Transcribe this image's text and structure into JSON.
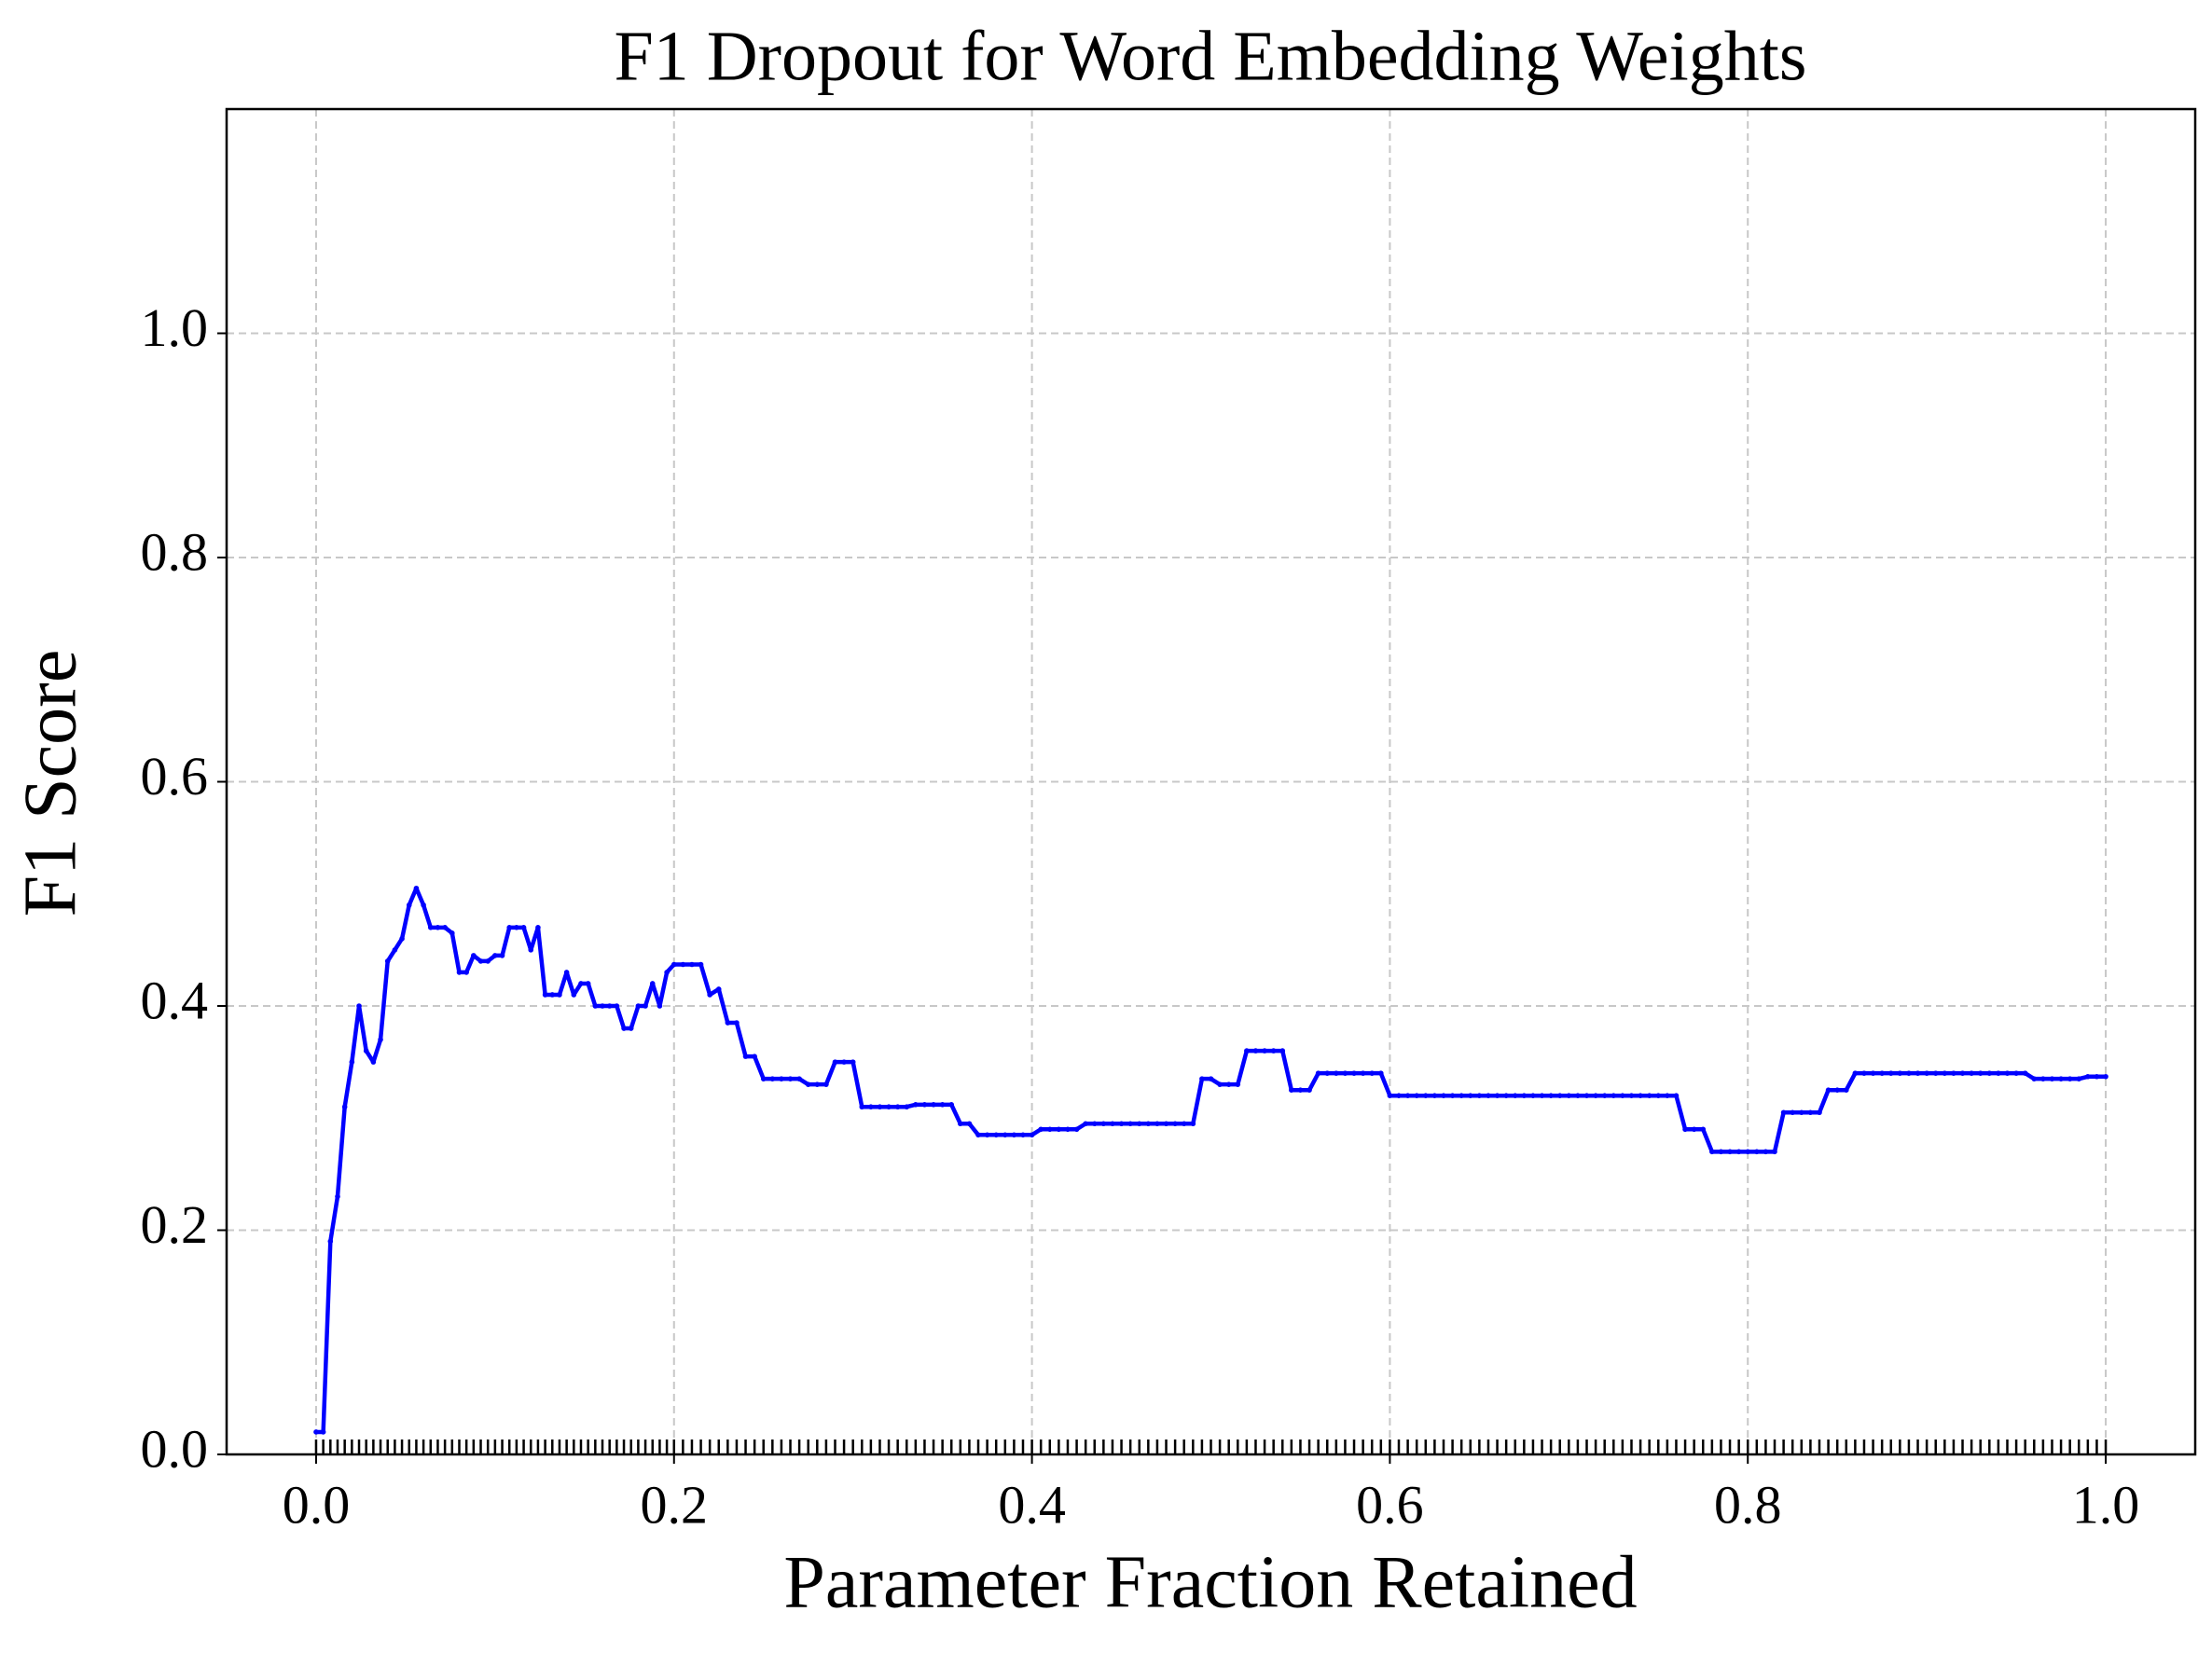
{
  "chart_data": {
    "type": "line",
    "title": "F1 Dropout for Word Embedding Weights",
    "xlabel": "Parameter Fraction Retained",
    "ylabel": "F1 Score",
    "xlim": [
      -0.05,
      1.05
    ],
    "ylim": [
      0,
      1.2
    ],
    "xticks": [
      {
        "value": 0,
        "label": "0.0"
      },
      0.2,
      0.4,
      0.6,
      0.8,
      {
        "value": 1,
        "label": "1.0"
      }
    ],
    "yticks": [
      {
        "value": 0,
        "label": "0.0"
      },
      0.2,
      0.4,
      0.6,
      0.8,
      {
        "value": 1,
        "label": "1.0"
      }
    ],
    "grid": true,
    "rug": true,
    "color": "#0000ff",
    "x": [
      0,
      0.004,
      0.008,
      0.012,
      0.016,
      0.02,
      0.024,
      0.028,
      0.032,
      0.036,
      0.04,
      0.044,
      0.048,
      0.052,
      0.056,
      0.06,
      0.064,
      0.068,
      0.072,
      0.076,
      0.08,
      0.084,
      0.088,
      0.092,
      0.096,
      0.1,
      0.104,
      0.108,
      0.112,
      0.116,
      0.12,
      0.124,
      0.128,
      0.132,
      0.136,
      0.14,
      0.144,
      0.148,
      0.152,
      0.156,
      0.16,
      0.164,
      0.168,
      0.172,
      0.176,
      0.18,
      0.184,
      0.188,
      0.192,
      0.196,
      0.2,
      0.205,
      0.21,
      0.215,
      0.22,
      0.225,
      0.23,
      0.235,
      0.24,
      0.245,
      0.25,
      0.255,
      0.26,
      0.265,
      0.27,
      0.275,
      0.28,
      0.285,
      0.29,
      0.295,
      0.3,
      0.305,
      0.31,
      0.315,
      0.32,
      0.325,
      0.33,
      0.335,
      0.34,
      0.345,
      0.35,
      0.355,
      0.36,
      0.365,
      0.37,
      0.375,
      0.38,
      0.385,
      0.39,
      0.395,
      0.4,
      0.405,
      0.41,
      0.415,
      0.42,
      0.425,
      0.43,
      0.435,
      0.44,
      0.445,
      0.45,
      0.455,
      0.46,
      0.465,
      0.47,
      0.475,
      0.48,
      0.485,
      0.49,
      0.495,
      0.5,
      0.505,
      0.51,
      0.515,
      0.52,
      0.525,
      0.53,
      0.535,
      0.54,
      0.545,
      0.55,
      0.555,
      0.56,
      0.565,
      0.57,
      0.575,
      0.58,
      0.585,
      0.59,
      0.595,
      0.6,
      0.605,
      0.61,
      0.615,
      0.62,
      0.625,
      0.63,
      0.635,
      0.64,
      0.645,
      0.65,
      0.655,
      0.66,
      0.665,
      0.67,
      0.675,
      0.68,
      0.685,
      0.69,
      0.695,
      0.7,
      0.705,
      0.71,
      0.715,
      0.72,
      0.725,
      0.73,
      0.735,
      0.74,
      0.745,
      0.75,
      0.755,
      0.76,
      0.765,
      0.77,
      0.775,
      0.78,
      0.785,
      0.79,
      0.795,
      0.8,
      0.805,
      0.81,
      0.815,
      0.82,
      0.825,
      0.83,
      0.835,
      0.84,
      0.845,
      0.85,
      0.855,
      0.86,
      0.865,
      0.87,
      0.875,
      0.88,
      0.885,
      0.89,
      0.895,
      0.9,
      0.905,
      0.91,
      0.915,
      0.92,
      0.925,
      0.93,
      0.935,
      0.94,
      0.945,
      0.95,
      0.955,
      0.96,
      0.965,
      0.97,
      0.975,
      0.98,
      0.985,
      0.99,
      0.995,
      1
    ],
    "values": [
      0.02,
      0.02,
      0.19,
      0.23,
      0.31,
      0.35,
      0.4,
      0.36,
      0.35,
      0.37,
      0.44,
      0.45,
      0.46,
      0.49,
      0.505,
      0.49,
      0.47,
      0.47,
      0.47,
      0.465,
      0.43,
      0.43,
      0.445,
      0.44,
      0.44,
      0.445,
      0.445,
      0.47,
      0.47,
      0.47,
      0.45,
      0.47,
      0.41,
      0.41,
      0.41,
      0.43,
      0.41,
      0.42,
      0.42,
      0.4,
      0.4,
      0.4,
      0.4,
      0.38,
      0.38,
      0.4,
      0.4,
      0.42,
      0.4,
      0.43,
      0.437,
      0.437,
      0.437,
      0.437,
      0.41,
      0.415,
      0.385,
      0.385,
      0.355,
      0.355,
      0.335,
      0.335,
      0.335,
      0.335,
      0.335,
      0.33,
      0.33,
      0.33,
      0.35,
      0.35,
      0.35,
      0.31,
      0.31,
      0.31,
      0.31,
      0.31,
      0.31,
      0.312,
      0.312,
      0.312,
      0.312,
      0.312,
      0.295,
      0.295,
      0.285,
      0.285,
      0.285,
      0.285,
      0.285,
      0.285,
      0.285,
      0.29,
      0.29,
      0.29,
      0.29,
      0.29,
      0.295,
      0.295,
      0.295,
      0.295,
      0.295,
      0.295,
      0.295,
      0.295,
      0.295,
      0.295,
      0.295,
      0.295,
      0.295,
      0.335,
      0.335,
      0.33,
      0.33,
      0.33,
      0.36,
      0.36,
      0.36,
      0.36,
      0.36,
      0.325,
      0.325,
      0.325,
      0.34,
      0.34,
      0.34,
      0.34,
      0.34,
      0.34,
      0.34,
      0.34,
      0.32,
      0.32,
      0.32,
      0.32,
      0.32,
      0.32,
      0.32,
      0.32,
      0.32,
      0.32,
      0.32,
      0.32,
      0.32,
      0.32,
      0.32,
      0.32,
      0.32,
      0.32,
      0.32,
      0.32,
      0.32,
      0.32,
      0.32,
      0.32,
      0.32,
      0.32,
      0.32,
      0.32,
      0.32,
      0.32,
      0.32,
      0.32,
      0.32,
      0.29,
      0.29,
      0.29,
      0.27,
      0.27,
      0.27,
      0.27,
      0.27,
      0.27,
      0.27,
      0.27,
      0.305,
      0.305,
      0.305,
      0.305,
      0.305,
      0.325,
      0.325,
      0.325,
      0.34,
      0.34,
      0.34,
      0.34,
      0.34,
      0.34,
      0.34,
      0.34,
      0.34,
      0.34,
      0.34,
      0.34,
      0.34,
      0.34,
      0.34,
      0.34,
      0.34,
      0.34,
      0.34,
      0.34,
      0.335,
      0.335,
      0.335,
      0.335,
      0.335,
      0.335,
      0.337,
      0.337,
      0.337
    ]
  }
}
